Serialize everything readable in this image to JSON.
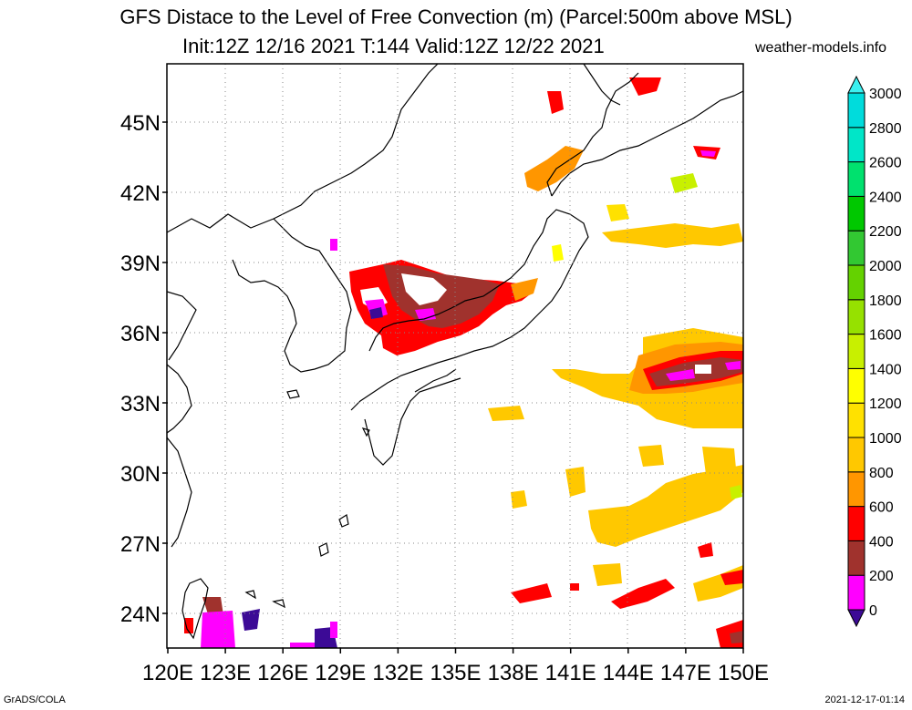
{
  "title_line1": "GFS Distace to the Level of Free Convection (m) (Parcel:500m above MSL)",
  "title_line2": "Init:12Z 12/16 2021 T:144 Valid:12Z 12/22 2021",
  "site": "weather-models.info",
  "footer_left": "GrADS/COLA",
  "footer_right": "2021-12-17-01:14",
  "lon_labels": [
    "120E",
    "123E",
    "126E",
    "129E",
    "132E",
    "135E",
    "138E",
    "141E",
    "144E",
    "147E",
    "150E"
  ],
  "lat_labels": [
    "45N",
    "42N",
    "39N",
    "36N",
    "33N",
    "30N",
    "27N",
    "24N"
  ],
  "colorbar": {
    "labels": [
      "0",
      "200",
      "400",
      "600",
      "800",
      "1000",
      "1200",
      "1400",
      "1600",
      "1800",
      "2000",
      "2200",
      "2400",
      "2600",
      "2800",
      "3000"
    ],
    "colors": [
      "#3c0a96",
      "#ff00ff",
      "#a0322d",
      "#ff0000",
      "#ff9600",
      "#ffc800",
      "#ffe100",
      "#ffff00",
      "#c8f000",
      "#96e100",
      "#64d200",
      "#32c832",
      "#00c800",
      "#00e16e",
      "#00e6c8",
      "#00dcdc",
      "#3cf0f0"
    ]
  },
  "map": {
    "lon_range": [
      120,
      150
    ],
    "lat_range": [
      22.5,
      47.5
    ]
  }
}
